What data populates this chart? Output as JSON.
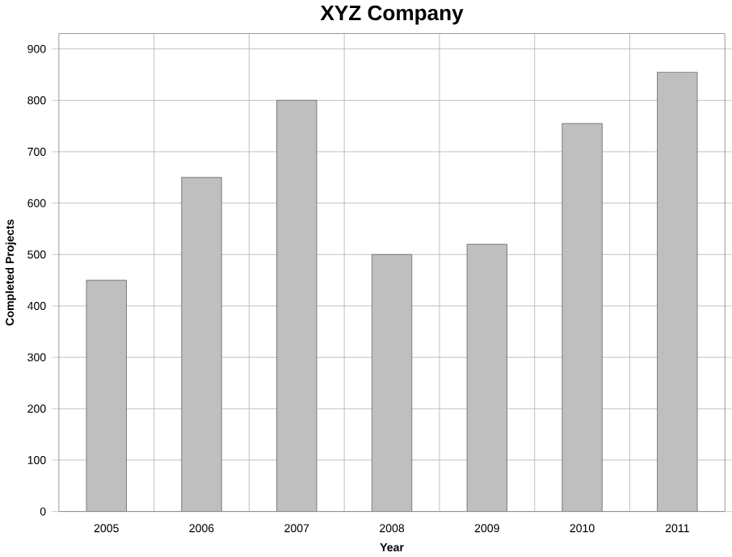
{
  "chart_data": {
    "type": "bar",
    "title": "XYZ Company",
    "xlabel": "Year",
    "ylabel": "Completed Projects",
    "categories": [
      "2005",
      "2006",
      "2007",
      "2008",
      "2009",
      "2010",
      "2011"
    ],
    "values": [
      450,
      650,
      800,
      500,
      520,
      755,
      855
    ],
    "color": "#bfbfbf",
    "ylim": [
      0,
      930
    ],
    "yticks": [
      0,
      100,
      200,
      300,
      400,
      500,
      600,
      700,
      800,
      900
    ],
    "grid": true
  }
}
